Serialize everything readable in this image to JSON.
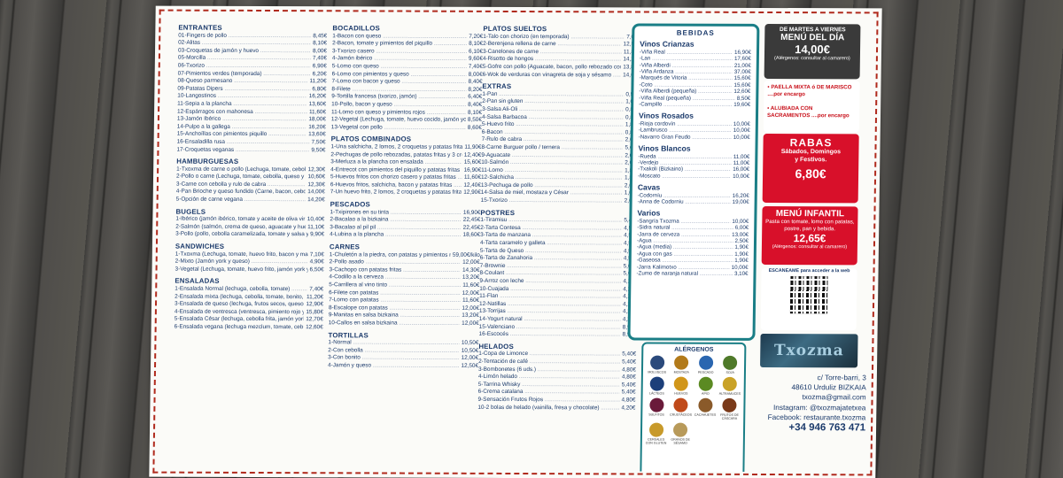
{
  "col1": [
    {
      "title": "ENTRANTES",
      "items": [
        {
          "n": "01-Fingers de pollo",
          "p": "8,45€"
        },
        {
          "n": "02-Alitas",
          "p": "8,10€"
        },
        {
          "n": "03-Croquetas de jamón y huevo",
          "p": "8,00€"
        },
        {
          "n": "05-Morcilla",
          "p": "7,40€"
        },
        {
          "n": "06-Txorizo",
          "p": "6,90€"
        },
        {
          "n": "07-Pimientos verdes (temporada)",
          "p": "6,20€"
        },
        {
          "n": "08-Queso parmesano",
          "p": "11,20€"
        },
        {
          "n": "09-Patatas Dipers",
          "p": "6,80€"
        },
        {
          "n": "10-Langostinos",
          "p": "16,20€"
        },
        {
          "n": "11-Sepia a la plancha",
          "p": "13,60€"
        },
        {
          "n": "12-Espárragos con mahonesa",
          "p": "11,60€"
        },
        {
          "n": "13-Jamón Ibérico",
          "p": "18,00€"
        },
        {
          "n": "14-Pulpo a la gallega",
          "p": "16,20€"
        },
        {
          "n": "15-Anchoíllas con pimientos piquillo",
          "p": "13,60€"
        },
        {
          "n": "16-Ensaladilla rusa",
          "p": "7,50€"
        },
        {
          "n": "17-Croquetas veganas",
          "p": "9,50€"
        }
      ]
    },
    {
      "title": "HAMBURGUESAS",
      "items": [
        {
          "n": "1-Txoxma de carne o pollo (Lechuga, tomate, cebolla, queso, huevo frito, bacon y mahonesa)",
          "p": "12,30€"
        },
        {
          "n": "2-Pollo o carne (Lechuga, tomate, cebolla, queso y mahonesa)",
          "p": "10,60€"
        },
        {
          "n": "3-Carne con cebolla y rulo de cabra",
          "p": "12,30€"
        },
        {
          "n": "4-Pan Brioche y queso fundido (Carne, bacon, cebolla caramelizada y huevo frito con queso fundido)",
          "p": "14,00€"
        },
        {
          "n": "5-Opción de carne vegana",
          "p": "14,20€"
        }
      ]
    },
    {
      "title": "BUGELS",
      "items": [
        {
          "n": "1-Ibérico (jamón ibérico, tomate y aceite de oliva virgen extra)",
          "p": "10,40€"
        },
        {
          "n": "2-Salmón (salmón, crema de queso, aguacate y huevo frito)",
          "p": "11,10€"
        },
        {
          "n": "3-Pollo (pollo, cebolla caramelizada, tomate y salsa yogurt)",
          "p": "9,90€"
        }
      ]
    },
    {
      "title": "SANDWICHES",
      "items": [
        {
          "n": "1-Txoxma (Lechuga, tomate, huevo frito, bacon y mahonesa)",
          "p": "7,10€"
        },
        {
          "n": "2-Mixto (Jamón york y queso)",
          "p": "4,90€"
        },
        {
          "n": "3-Vegetal (Lechuga, tomate, huevo frito, jamón york y mahonesa)",
          "p": "6,50€"
        }
      ]
    },
    {
      "title": "ENSALADAS",
      "items": [
        {
          "n": "1-Ensalada Normal (lechuga, cebolla, tomate)",
          "p": "7,40€"
        },
        {
          "n": "2-Ensalada mixta (lechuga, cebolla, tomate, bonito, huevo cocido, aceitunas y espárragos)",
          "p": "11,20€"
        },
        {
          "n": "3-Ensalada de queso (lechuga, frutos secos, queso rulo de cabra y aliño de módena)",
          "p": "12,90€"
        },
        {
          "n": "4-Ensalada de ventresca (ventresca, pimiento rojo y verde, huevo cocido, aceitunas, y aliño de módena)",
          "p": "15,80€"
        },
        {
          "n": "5-Ensalada César (lechuga, cebolla frita, jamón york, picatostes, queso parmesano, pollo y salsa César)",
          "p": "12,70€"
        },
        {
          "n": "6-Ensalada vegana (lechuga mezclum, tomate, cebolla)",
          "p": "12,60€"
        }
      ]
    }
  ],
  "col2": [
    {
      "title": "BOCADILLOS",
      "items": [
        {
          "n": "1-Bacon con queso",
          "p": "7,20€"
        },
        {
          "n": "2-Bacon, tomate y pimientos del piquillo",
          "p": "8,10€"
        },
        {
          "n": "3-Txorizo casero",
          "p": "6,10€"
        },
        {
          "n": "4-Jamón ibérico",
          "p": "9,60€"
        },
        {
          "n": "5-Lomo con queso",
          "p": "7,40€"
        },
        {
          "n": "6-Lomo con pimientos y queso",
          "p": "8,00€"
        },
        {
          "n": "7-Lomo con bacon y queso",
          "p": "8,40€"
        },
        {
          "n": "8-Filete",
          "p": "8,20€"
        },
        {
          "n": "9-Tortilla francesa (txorizo, jamón)",
          "p": "6,40€"
        },
        {
          "n": "10-Pollo, bacon y queso",
          "p": "8,40€"
        },
        {
          "n": "11-Lomo con queso y pimientos rojos",
          "p": "8,10€"
        },
        {
          "n": "12-Vegetal (Lechuga, tomate, huevo cocido, jamón york y mahonesa)",
          "p": "8,50€"
        },
        {
          "n": "13-Vegetal con pollo",
          "p": "8,60€"
        }
      ]
    },
    {
      "title": "PLATOS COMBINADOS",
      "items": [
        {
          "n": "1-Una salchicha, 2 lomos, 2 croquetas y patatas fritas",
          "p": "11,90€"
        },
        {
          "n": "2-Pechugas de pollo rebozadas, patatas fritas y 3 croquetas",
          "p": "12,40€"
        },
        {
          "n": "3-Merluza a la plancha con ensalada",
          "p": "15,60€"
        },
        {
          "n": "4-Entrecot con pimientos del piquillo y patatas fritas",
          "p": "16,90€"
        },
        {
          "n": "5-Huevos fritos con chorizo casero y patatas fritas",
          "p": "11,60€"
        },
        {
          "n": "6-Huevos fritos, salchicha, bacon y patatas fritas",
          "p": "12,40€"
        },
        {
          "n": "7-Un huevo frito, 2 lomos, 2 croquetas y patatas fritas",
          "p": "12,90€"
        }
      ]
    },
    {
      "title": "PESCADOS",
      "items": [
        {
          "n": "1-Txipirones en su tinta",
          "p": "16,90€"
        },
        {
          "n": "2-Bacalao a la bizkaina",
          "p": "22,45€"
        },
        {
          "n": "3-Bacalao al pil pil",
          "p": "22,45€"
        },
        {
          "n": "4-Lubina a la plancha",
          "p": "18,60€"
        }
      ]
    },
    {
      "title": "CARNES",
      "items": [
        {
          "n": "1-Chuletón a la piedra, con patatas y pimientos rojos",
          "p": "59,00€/kilo"
        },
        {
          "n": "2-Pollo asado",
          "p": "12,00€"
        },
        {
          "n": "3-Cachopo con patatas fritas",
          "p": "14,30€"
        },
        {
          "n": "4-Codillo a la cerveza",
          "p": "13,20€"
        },
        {
          "n": "5-Carrillera al vino tinto",
          "p": "11,60€"
        },
        {
          "n": "6-Filete con patatas",
          "p": "12,00€"
        },
        {
          "n": "7-Lomo con patatas",
          "p": "11,60€"
        },
        {
          "n": "8-Escalope con patatas",
          "p": "12,00€"
        },
        {
          "n": "9-Manitas en salsa bizkaina",
          "p": "13,20€"
        },
        {
          "n": "10-Callos en salsa bizkaina",
          "p": "12,00€"
        }
      ]
    },
    {
      "title": "TORTILLAS",
      "items": [
        {
          "n": "1-Normal",
          "p": "10,50€"
        },
        {
          "n": "2-Con cebolla",
          "p": "10,50€"
        },
        {
          "n": "3-Con bonito",
          "p": "12,00€"
        },
        {
          "n": "4-Jamón y queso",
          "p": "12,50€"
        }
      ]
    }
  ],
  "col3": [
    {
      "title": "PLATOS SUELTOS",
      "items": [
        {
          "n": "1-Talo con chorizo (en temporada)",
          "p": "7,00€"
        },
        {
          "n": "2-Berenjena rellena de carne",
          "p": "12,50€"
        },
        {
          "n": "3-Canelones de carne",
          "p": "11,80€"
        },
        {
          "n": "4-Risotto de hongos",
          "p": "14,20€"
        },
        {
          "n": "5-Gofre con pollo (Aguacate, bacon, pollo rebozado con salsa de miel y mostaza)",
          "p": "13,80€"
        },
        {
          "n": "6-Wok de verduras con vinagreta de soja y sésamo",
          "p": "14,60€"
        }
      ]
    },
    {
      "title": "EXTRAS",
      "items": [
        {
          "n": "1-Pan",
          "p": "0,50€"
        },
        {
          "n": "2-Pan sin gluten",
          "p": "1,00€"
        },
        {
          "n": "3-Salsa Ali-Oli",
          "p": "0,85€"
        },
        {
          "n": "4-Salsa Barbacoa",
          "p": "0,85€"
        },
        {
          "n": "5-Huevo frito",
          "p": "1,80€"
        },
        {
          "n": "6-Bacon",
          "p": "0,80€"
        },
        {
          "n": "7-Rulo de cabra",
          "p": "2,00€"
        },
        {
          "n": "8-Carne Burguer pollo / ternera",
          "p": "5,60€"
        },
        {
          "n": "9-Aguacate",
          "p": "2,00€"
        },
        {
          "n": "10-Salmón",
          "p": "2,00€"
        },
        {
          "n": "11-Lomo",
          "p": "1,80€"
        },
        {
          "n": "12-Salchicha",
          "p": "1,80€"
        },
        {
          "n": "13-Pechuga de pollo",
          "p": "2,00€"
        },
        {
          "n": "14-Salsa de miel, mostaza y César",
          "p": "1,00€"
        },
        {
          "n": "15-Txorizo",
          "p": "2,00€"
        }
      ]
    },
    {
      "title": "POSTRES",
      "items": [
        {
          "n": "1-Tiramisu",
          "p": "5,40€"
        },
        {
          "n": "2-Tarta Contesa",
          "p": "4,50€"
        },
        {
          "n": "3-Tarta de manzana",
          "p": "4,50€"
        },
        {
          "n": "4-Tarta caramelo y galleta",
          "p": "4,50€"
        },
        {
          "n": "5-Tarta de Queso",
          "p": "4,50€"
        },
        {
          "n": "6-Tarta de Zanahoria",
          "p": "4,50€"
        },
        {
          "n": "7-Brownie",
          "p": "5,00€"
        },
        {
          "n": "8-Coulant",
          "p": "5,00€"
        },
        {
          "n": "9-Arroz con leche",
          "p": "4,20€"
        },
        {
          "n": "10-Cuajada",
          "p": "4,20€"
        },
        {
          "n": "11-Flan",
          "p": "4,20€"
        },
        {
          "n": "12-Natillas",
          "p": "4,20€"
        },
        {
          "n": "13-Torrijas",
          "p": "4,20€"
        },
        {
          "n": "14-Yogurt natural",
          "p": "4,20€"
        },
        {
          "n": "15-Valenciano",
          "p": "8,90€"
        },
        {
          "n": "16-Escocés",
          "p": "8,90€"
        }
      ]
    },
    {
      "title": "HELADOS",
      "items": [
        {
          "n": "1-Copa de Limonce",
          "p": "5,40€"
        },
        {
          "n": "2-Tentación de café",
          "p": "5,40€"
        },
        {
          "n": "3-Bombonetes (6 uds.)",
          "p": "4,80€"
        },
        {
          "n": "4-Limón helado",
          "p": "4,80€"
        },
        {
          "n": "5-Tarrina Whisky",
          "p": "5,40€"
        },
        {
          "n": "6-Crema catalana",
          "p": "5,40€"
        },
        {
          "n": "9-Sensación Frutos Rojos",
          "p": "4,80€"
        },
        {
          "n": "10-2 bolas de helado (vainilla, fresa y chocolate)",
          "p": "4,20€"
        }
      ]
    }
  ],
  "bebidas": {
    "title": "BEBIDAS",
    "groups": [
      {
        "title": "Vinos Crianzas",
        "items": [
          {
            "n": "-Viña Real",
            "p": "16,90€"
          },
          {
            "n": "-Lan",
            "p": "17,60€"
          },
          {
            "n": "-Viña Alberdi",
            "p": "21,00€"
          },
          {
            "n": "-Viña Ardanza",
            "p": "37,00€"
          },
          {
            "n": "-Marqués de Vitoria",
            "p": "15,60€"
          },
          {
            "n": "-Coto",
            "p": "15,60€"
          },
          {
            "n": "-Viña Alberdi (pequeña)",
            "p": "12,60€"
          },
          {
            "n": "-Viña Real (pequeña)",
            "p": "8,50€"
          },
          {
            "n": "-Campillo",
            "p": "19,60€"
          }
        ]
      },
      {
        "title": "Vinos Rosados",
        "items": [
          {
            "n": "-Rioja cordovín",
            "p": "10,00€"
          },
          {
            "n": "-Lambrusco",
            "p": "10,00€"
          },
          {
            "n": "-Navarro Gran Feudo",
            "p": "10,00€"
          }
        ]
      },
      {
        "title": "Vinos Blancos",
        "items": [
          {
            "n": "-Rueda",
            "p": "11,00€"
          },
          {
            "n": "-Verdejo",
            "p": "11,00€"
          },
          {
            "n": "-Txakoli (Bizkaino)",
            "p": "16,00€"
          },
          {
            "n": "-Moscato",
            "p": "10,00€"
          }
        ]
      },
      {
        "title": "Cavas",
        "items": [
          {
            "n": "-Codorníu",
            "p": "16,20€"
          },
          {
            "n": "-Anna de Codorniu",
            "p": "19,00€"
          }
        ]
      },
      {
        "title": "Varios",
        "items": [
          {
            "n": "-Sangría Txozma",
            "p": "10,00€"
          },
          {
            "n": "-Sidra natural",
            "p": "6,00€"
          },
          {
            "n": "-Jarra de cerveza",
            "p": "13,00€"
          },
          {
            "n": "-Agua",
            "p": "2,50€"
          },
          {
            "n": "-Agua (media)",
            "p": "1,90€"
          },
          {
            "n": "-Agua con gas",
            "p": "1,90€"
          },
          {
            "n": "-Gaseosa",
            "p": "1,90€"
          },
          {
            "n": "-Jarra Kalimotxo",
            "p": "10,00€"
          },
          {
            "n": "-Zumo de naranja natural",
            "p": "3,10€"
          }
        ]
      }
    ]
  },
  "menu_dia": {
    "line1": "DE MARTES A VIERNES",
    "line2": "MENÚ DEL DÍA",
    "price": "14,00€",
    "note": "(Alérgenos: consultar al camarero)"
  },
  "paella": {
    "line1": "• PAELLA MIXTA ó DE MARISCO ....por encargo",
    "line2": "• ALUBIADA CON SACRAMENTOS ....por encargo"
  },
  "rabas": {
    "title": "RABAS",
    "line1": "Sábados, Domingos",
    "line2": "y Festivos.",
    "price": "6,80€"
  },
  "infantil": {
    "title": "MENÚ INFANTIL",
    "line1": "Pasta con tomate, lomo con patatas, postre, pan y bebida.",
    "price": "12,65€",
    "note": "(Alérgenos: consultar al camarero)"
  },
  "qr": {
    "label": "ESCANEAME para acceder a la web"
  },
  "alergenos": {
    "title": "ALÉRGENOS",
    "items": [
      {
        "name": "MOLUSCOS",
        "color": "#2b4a7c"
      },
      {
        "name": "MOSTAZA",
        "color": "#b27a1a"
      },
      {
        "name": "PESCADO",
        "color": "#2a66b0"
      },
      {
        "name": "SOJA",
        "color": "#4f7a2a"
      },
      {
        "name": "LÁCTEOS",
        "color": "#1c3f7a"
      },
      {
        "name": "HUEVOS",
        "color": "#d1961a"
      },
      {
        "name": "APIO",
        "color": "#5b8a22"
      },
      {
        "name": "ALTRAMUCES",
        "color": "#c9a227"
      },
      {
        "name": "SULFITOS",
        "color": "#6a1a3a"
      },
      {
        "name": "CRUSTÁCEOS",
        "color": "#c04a1a"
      },
      {
        "name": "CACAHUETES",
        "color": "#8a5a2a"
      },
      {
        "name": "FRUTOS DE CÁSCARA",
        "color": "#7a3a1a"
      },
      {
        "name": "CEREALES CON GLUTEN",
        "color": "#c89a2a"
      },
      {
        "name": "GRANOS DE SÉSAMO",
        "color": "#b89a5a"
      }
    ]
  },
  "logo": "Txozma",
  "contact": {
    "address": "c/ Torre-barri, 3",
    "city": "48610 Urduliz  BIZKAIA",
    "email": "txozma@gmail.com",
    "instagram": "Instagram: @txozmajatetxea",
    "facebook": "Facebook: restaurante.txozma",
    "phone": "+34 946 763 471"
  }
}
